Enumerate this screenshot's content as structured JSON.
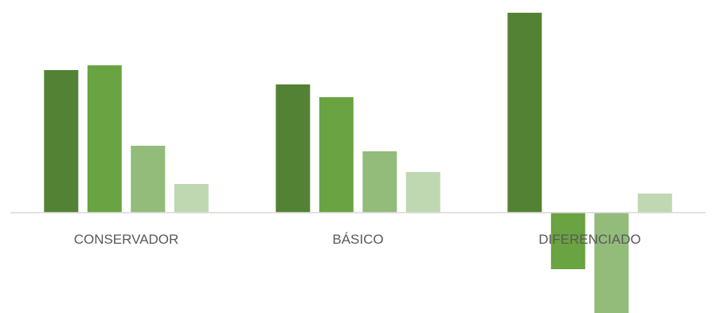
{
  "chart_data": {
    "type": "bar",
    "categories": [
      "CONSERVADOR",
      "BÁSICO",
      "DIFERENCIADO"
    ],
    "series": [
      {
        "values": [
          179,
          161,
          251
        ],
        "color": "#548235"
      },
      {
        "values": [
          185,
          145,
          -71
        ],
        "color": "#6aa341"
      },
      {
        "values": [
          84,
          77,
          -126
        ],
        "color": "#93bb7a"
      },
      {
        "values": [
          36,
          51,
          24
        ],
        "color": "#c0d8b2"
      }
    ],
    "ylim": [
      -127,
      252
    ],
    "grid": false,
    "legend": "none",
    "title": "",
    "xlabel": "",
    "ylabel": ""
  }
}
